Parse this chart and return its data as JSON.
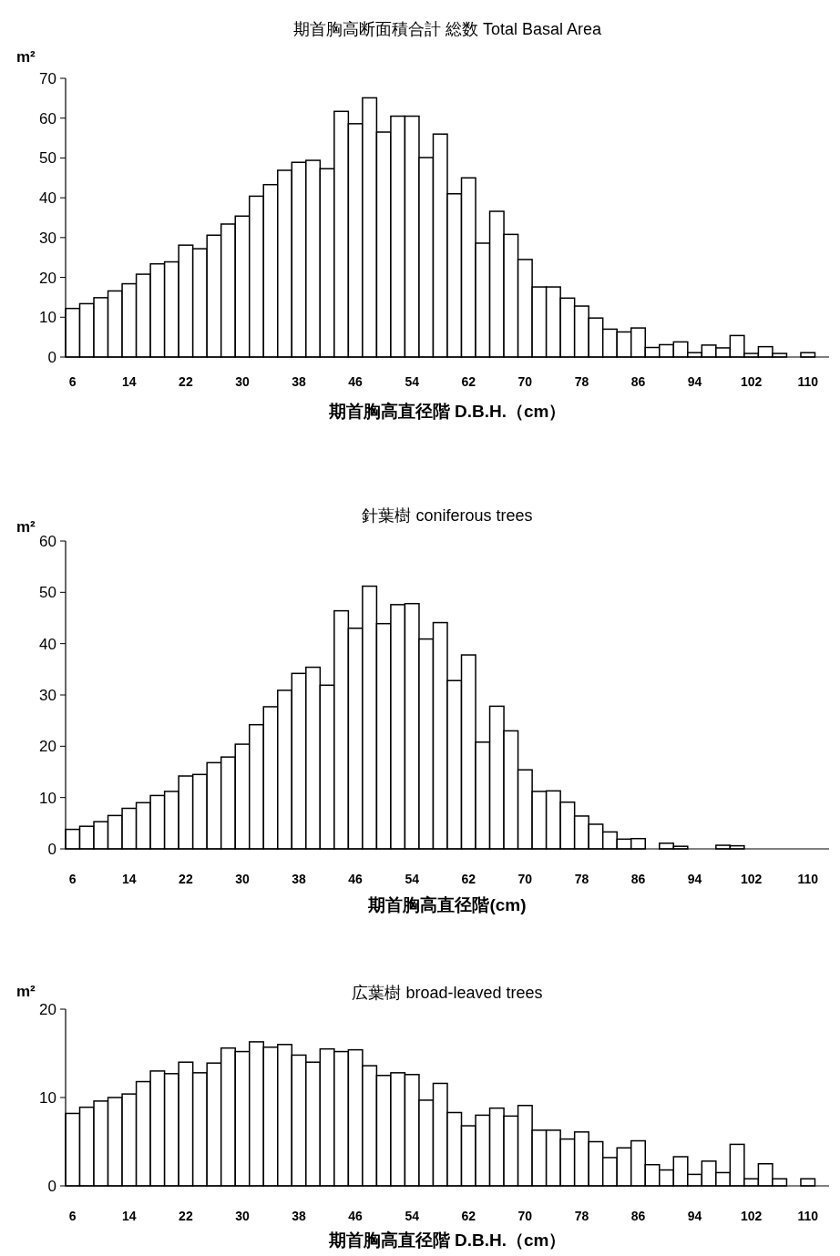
{
  "chart_data": [
    {
      "type": "bar",
      "title": "期首胸高断面積合計  総数 Total  Basal  Area",
      "xlabel": "期首胸高直径階 D.B.H.（cm）",
      "ylabel": "m²",
      "color": "#ffffff",
      "categories": [
        "6",
        null,
        null,
        null,
        "14",
        null,
        null,
        null,
        "22",
        null,
        null,
        null,
        "30",
        null,
        null,
        null,
        "38",
        null,
        null,
        null,
        "46",
        null,
        null,
        null,
        "54",
        null,
        null,
        null,
        "62",
        null,
        null,
        null,
        "70",
        null,
        null,
        null,
        "78",
        null,
        null,
        null,
        "86",
        null,
        null,
        null,
        "94",
        null,
        null,
        null,
        "102",
        null,
        null,
        null,
        "110"
      ],
      "values": [
        12.2,
        13.4,
        14.9,
        16.6,
        18.4,
        20.8,
        23.4,
        23.9,
        28.1,
        27.2,
        30.6,
        33.4,
        35.4,
        40.4,
        43.3,
        46.9,
        48.9,
        49.4,
        47.3,
        61.7,
        58.6,
        65.1,
        56.5,
        60.5,
        60.5,
        50.1,
        56,
        41,
        45,
        28.6,
        36.6,
        30.8,
        24.5,
        17.6,
        17.6,
        14.8,
        12.8,
        9.8,
        7,
        6.3,
        7.3,
        2.4,
        3.1,
        3.8,
        1.1,
        3,
        2.3,
        5.4,
        0.9,
        2.6,
        0.9,
        0,
        1.1
      ],
      "ylim": [
        0,
        70
      ],
      "yticks": [
        0,
        10,
        20,
        30,
        40,
        50,
        60,
        70
      ]
    },
    {
      "type": "bar",
      "title": "針葉樹  coniferous trees",
      "xlabel": "期首胸高直径階(cm)",
      "ylabel": "m²",
      "color": "#ffffff",
      "categories": [
        "6",
        null,
        null,
        null,
        "14",
        null,
        null,
        null,
        "22",
        null,
        null,
        null,
        "30",
        null,
        null,
        null,
        "38",
        null,
        null,
        null,
        "46",
        null,
        null,
        null,
        "54",
        null,
        null,
        null,
        "62",
        null,
        null,
        null,
        "70",
        null,
        null,
        null,
        "78",
        null,
        null,
        null,
        "86",
        null,
        null,
        null,
        "94",
        null,
        null,
        null,
        "102",
        null,
        null,
        null,
        "110"
      ],
      "values": [
        3.8,
        4.4,
        5.3,
        6.5,
        7.9,
        9,
        10.4,
        11.2,
        14.2,
        14.5,
        16.8,
        17.9,
        20.4,
        24.2,
        27.7,
        30.9,
        34.2,
        35.4,
        31.9,
        46.4,
        43,
        51.2,
        43.9,
        47.6,
        47.8,
        40.9,
        44.1,
        32.8,
        37.8,
        20.8,
        27.8,
        23,
        15.4,
        11.2,
        11.3,
        9.1,
        6.4,
        4.8,
        3.3,
        1.9,
        2,
        0,
        1.1,
        0.5,
        0,
        0,
        0.7,
        0.6,
        0,
        0,
        0,
        0,
        0
      ],
      "ylim": [
        0,
        60
      ],
      "yticks": [
        0,
        10,
        20,
        30,
        40,
        50,
        60
      ]
    },
    {
      "type": "bar",
      "title": "広葉樹 broad-leaved trees",
      "xlabel": "期首胸高直径階  D.B.H.（cm）",
      "ylabel": "m²",
      "color": "#ffffff",
      "categories": [
        "6",
        null,
        null,
        null,
        "14",
        null,
        null,
        null,
        "22",
        null,
        null,
        null,
        "30",
        null,
        null,
        null,
        "38",
        null,
        null,
        null,
        "46",
        null,
        null,
        null,
        "54",
        null,
        null,
        null,
        "62",
        null,
        null,
        null,
        "70",
        null,
        null,
        null,
        "78",
        null,
        null,
        null,
        "86",
        null,
        null,
        null,
        "94",
        null,
        null,
        null,
        "102",
        null,
        null,
        null,
        "110"
      ],
      "values": [
        8.2,
        8.9,
        9.6,
        10,
        10.4,
        11.8,
        13,
        12.7,
        14,
        12.8,
        13.9,
        15.6,
        15.2,
        16.3,
        15.7,
        16,
        14.8,
        14,
        15.5,
        15.2,
        15.4,
        13.6,
        12.5,
        12.8,
        12.6,
        9.7,
        11.6,
        8.3,
        6.8,
        8,
        8.8,
        7.9,
        9.1,
        6.3,
        6.3,
        5.3,
        6.1,
        5,
        3.2,
        4.3,
        5.1,
        2.4,
        1.8,
        3.3,
        1.3,
        2.8,
        1.5,
        4.7,
        0.8,
        2.5,
        0.8,
        0,
        0.8
      ],
      "ylim": [
        0,
        20
      ],
      "yticks": [
        0,
        10,
        20
      ]
    }
  ]
}
